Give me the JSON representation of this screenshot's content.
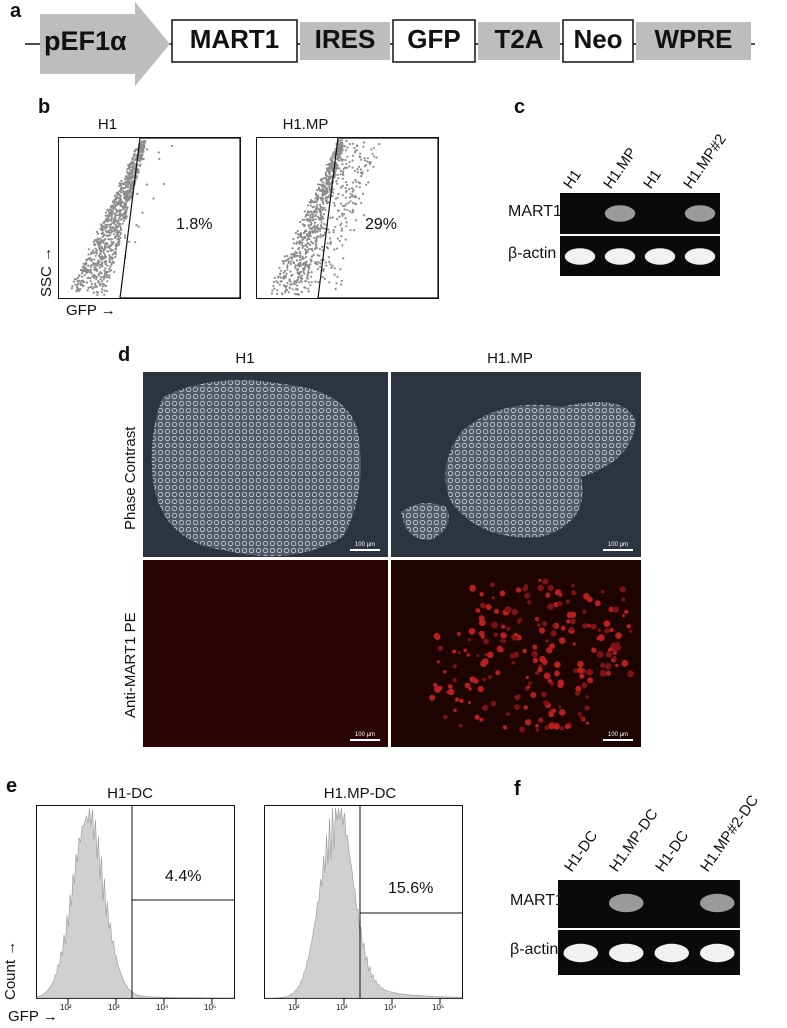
{
  "panel_a": {
    "label": "a",
    "promoter": "pEF1α",
    "elements": [
      {
        "name": "MART1",
        "style": "boxed"
      },
      {
        "name": "IRES",
        "style": "gray"
      },
      {
        "name": "GFP",
        "style": "boxed"
      },
      {
        "name": "T2A",
        "style": "gray"
      },
      {
        "name": "Neo",
        "style": "boxed"
      },
      {
        "name": "WPRE",
        "style": "gray"
      }
    ]
  },
  "panel_b": {
    "label": "b",
    "y_axis": "SSC →",
    "x_axis": "GFP →",
    "plots": [
      {
        "title": "H1",
        "percent": "1.8%"
      },
      {
        "title": "H1.MP",
        "percent": "29%"
      }
    ]
  },
  "panel_c": {
    "label": "c",
    "lanes": [
      "H1",
      "H1.MP",
      "H1",
      "H1.MP#2"
    ],
    "rows": [
      {
        "name": "MART1",
        "bands": [
          0,
          1,
          0,
          1
        ]
      },
      {
        "name": "β-actin",
        "bands": [
          1,
          1,
          1,
          1
        ]
      }
    ]
  },
  "panel_d": {
    "label": "d",
    "columns": [
      "H1",
      "H1.MP"
    ],
    "rows": [
      "Phase Contrast",
      "Anti-MART1 PE"
    ],
    "scale_bar": "100 μm"
  },
  "panel_e": {
    "label": "e",
    "y_axis": "Count →",
    "x_axis": "GFP →",
    "x_ticks": [
      "10²",
      "10³",
      "10⁴",
      "10⁵"
    ],
    "plots": [
      {
        "title": "H1-DC",
        "percent": "4.4%"
      },
      {
        "title": "H1.MP-DC",
        "percent": "15.6%"
      }
    ]
  },
  "panel_f": {
    "label": "f",
    "lanes": [
      "H1-DC",
      "H1.MP-DC",
      "H1-DC",
      "H1.MP#2-DC"
    ],
    "rows": [
      {
        "name": "MART1",
        "bands": [
          0,
          1,
          0,
          1
        ]
      },
      {
        "name": "β-actin",
        "bands": [
          1,
          1,
          1,
          1
        ]
      }
    ]
  }
}
